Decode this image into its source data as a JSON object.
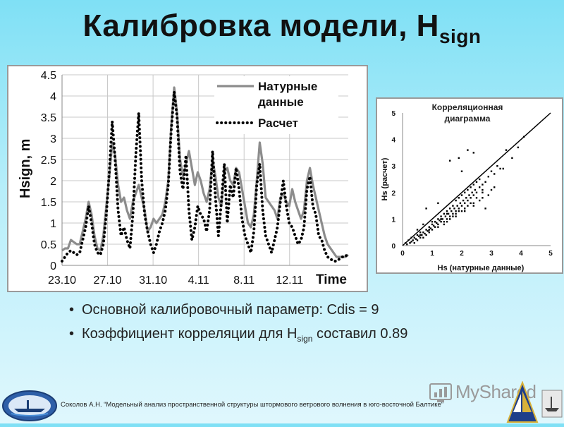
{
  "title": {
    "main": "Калибровка модели, H",
    "sub": "sign"
  },
  "bullets": [
    {
      "text": "Основной калибровочный параметр: Cdis = 9"
    },
    {
      "pre": "Коэффициент корреляции для H",
      "sub": "sign",
      "post": " составил 0.89"
    }
  ],
  "footer": "Соколов А.Н. “Модельный анализ пространственной структуры штормового ветрового волнения в юго-восточной Балтике”",
  "watermark": "MyShared",
  "colors": {
    "observed": "#8c8c8c",
    "model": "#000000",
    "grid": "#c8c8c8"
  },
  "icons": {
    "logo_left": "institute-emblem-icon",
    "logo_right": "ship-emblem-icon",
    "watermark": "myshared-logo-icon"
  },
  "chart_data": [
    {
      "type": "line",
      "ylabel": "Hsign, m",
      "xlabel": "Time",
      "ylim": [
        0,
        4.5
      ],
      "yticks": [
        "0",
        "0.5",
        "1",
        "1.5",
        "2",
        "2.5",
        "3",
        "3.5",
        "4",
        "4.5"
      ],
      "xticks": [
        "23.10",
        "27.10",
        "31.10",
        "4.11",
        "8.11",
        "12.11"
      ],
      "grid": true,
      "legend_position": "top-right",
      "series": [
        {
          "name": "Натурные данные",
          "line1": "Натурные",
          "line2": "данные",
          "style": "solid",
          "values": [
            0.35,
            0.4,
            0.4,
            0.6,
            0.55,
            0.5,
            0.5,
            0.8,
            1.1,
            1.5,
            1.2,
            0.7,
            0.4,
            0.35,
            0.7,
            1.4,
            2.1,
            2.9,
            2.6,
            1.9,
            1.5,
            1.6,
            1.3,
            1.1,
            1.5,
            1.7,
            1.9,
            1.6,
            1.3,
            0.8,
            0.9,
            1.1,
            1.0,
            1.1,
            1.2,
            1.5,
            2.0,
            3.3,
            4.2,
            3.6,
            2.5,
            2.1,
            2.4,
            2.7,
            2.3,
            1.9,
            2.2,
            2.0,
            1.7,
            1.5,
            1.8,
            2.5,
            2.1,
            1.6,
            1.4,
            2.2,
            2.3,
            2.0,
            1.9,
            2.3,
            2.2,
            1.8,
            1.4,
            1.0,
            0.9,
            1.2,
            2.0,
            2.9,
            2.4,
            1.6,
            1.5,
            1.4,
            1.3,
            1.1,
            1.6,
            1.7,
            1.5,
            1.4,
            1.8,
            1.5,
            1.3,
            1.1,
            1.3,
            2.0,
            2.3,
            1.9,
            1.6,
            1.3,
            1.0,
            0.7,
            0.5,
            0.4,
            0.3,
            0.2,
            0.2,
            0.2,
            0.2,
            0.25
          ]
        },
        {
          "name": "Расчет",
          "style": "dotted",
          "values": [
            0.1,
            0.2,
            0.3,
            0.35,
            0.3,
            0.25,
            0.3,
            0.6,
            0.9,
            1.4,
            1.0,
            0.5,
            0.3,
            0.25,
            0.5,
            1.2,
            2.2,
            3.4,
            2.5,
            1.3,
            0.7,
            0.9,
            0.6,
            0.4,
            1.2,
            2.6,
            3.6,
            2.0,
            1.2,
            0.8,
            0.5,
            0.3,
            0.5,
            0.8,
            1.0,
            1.3,
            1.9,
            3.2,
            4.1,
            3.5,
            2.2,
            1.8,
            2.6,
            1.3,
            0.6,
            0.9,
            1.4,
            1.2,
            1.1,
            0.8,
            1.3,
            2.7,
            1.6,
            0.7,
            1.5,
            2.4,
            1.0,
            1.9,
            1.6,
            2.3,
            1.8,
            1.1,
            0.7,
            0.5,
            0.3,
            0.8,
            1.9,
            2.4,
            1.3,
            0.7,
            0.5,
            0.3,
            0.6,
            0.9,
            1.5,
            2.0,
            1.4,
            1.0,
            0.9,
            0.7,
            0.5,
            0.6,
            0.9,
            1.8,
            2.1,
            1.4,
            1.2,
            0.7,
            0.6,
            0.35,
            0.2,
            0.15,
            0.1,
            0.1,
            0.15,
            0.2,
            0.2,
            0.3
          ]
        }
      ]
    },
    {
      "type": "scatter",
      "title_line1": "Корреляционная",
      "title_line2": "диаграмма",
      "xlabel": "Hs (натурные данные)",
      "ylabel": "Hs (расчет)",
      "xlim": [
        0,
        5
      ],
      "ylim": [
        0,
        5
      ],
      "xticks": [
        "0",
        "1",
        "2",
        "3",
        "4",
        "5"
      ],
      "yticks": [
        "0",
        "1",
        "2",
        "3",
        "4",
        "5"
      ],
      "grid": false,
      "line": {
        "x": [
          0,
          5
        ],
        "y": [
          0,
          5
        ]
      },
      "x": [
        0.1,
        0.15,
        0.2,
        0.25,
        0.3,
        0.3,
        0.35,
        0.4,
        0.4,
        0.45,
        0.5,
        0.5,
        0.55,
        0.6,
        0.6,
        0.65,
        0.7,
        0.7,
        0.75,
        0.8,
        0.8,
        0.85,
        0.9,
        0.9,
        0.95,
        1.0,
        1.0,
        1.05,
        1.1,
        1.1,
        1.15,
        1.2,
        1.2,
        1.25,
        1.3,
        1.3,
        1.35,
        1.4,
        1.4,
        1.45,
        1.5,
        1.5,
        1.55,
        1.6,
        1.6,
        1.65,
        1.7,
        1.7,
        1.75,
        1.8,
        1.8,
        1.85,
        1.9,
        1.9,
        1.95,
        2.0,
        2.0,
        2.05,
        2.1,
        2.1,
        2.15,
        2.2,
        2.2,
        2.25,
        2.3,
        2.3,
        2.35,
        2.4,
        2.4,
        2.45,
        2.5,
        2.5,
        2.6,
        2.6,
        2.7,
        2.7,
        2.8,
        2.9,
        3.0,
        3.1,
        3.2,
        3.3,
        3.5,
        3.7,
        3.9,
        4.1,
        0.8,
        1.0,
        1.2,
        1.4,
        1.6,
        1.8,
        2.0,
        2.2,
        2.4,
        2.6,
        0.5,
        0.7,
        0.9,
        1.1,
        1.3,
        1.5,
        1.7,
        1.9,
        2.1,
        2.3,
        2.5,
        2.7,
        2.9,
        3.1,
        0.6,
        0.9,
        1.2,
        1.5,
        1.8,
        2.1,
        2.4,
        2.7,
        3.0,
        2.2,
        2.4,
        2.0,
        1.6,
        1.9,
        2.8,
        3.4
      ],
      "y": [
        0.1,
        0.05,
        0.2,
        0.1,
        0.15,
        0.3,
        0.2,
        0.3,
        0.1,
        0.25,
        0.4,
        0.2,
        0.35,
        0.3,
        0.5,
        0.4,
        0.5,
        0.3,
        0.45,
        0.6,
        0.4,
        0.55,
        0.7,
        0.5,
        0.65,
        0.8,
        0.6,
        0.75,
        0.9,
        0.7,
        0.85,
        1.0,
        0.8,
        0.95,
        1.1,
        0.9,
        1.0,
        1.2,
        0.9,
        1.1,
        1.3,
        1.0,
        1.2,
        1.4,
        1.1,
        1.3,
        1.5,
        1.2,
        1.4,
        1.7,
        1.3,
        1.5,
        1.8,
        1.4,
        1.6,
        1.9,
        1.5,
        1.7,
        2.0,
        1.6,
        1.8,
        2.1,
        1.7,
        1.9,
        2.2,
        1.8,
        2.0,
        2.3,
        1.9,
        2.1,
        2.4,
        2.0,
        2.2,
        2.5,
        2.3,
        2.1,
        2.4,
        2.6,
        2.8,
        2.7,
        3.0,
        2.9,
        3.6,
        3.3,
        3.7,
        4.1,
        1.4,
        0.9,
        1.6,
        0.8,
        1.0,
        1.2,
        1.3,
        1.5,
        1.6,
        1.7,
        0.6,
        0.8,
        0.6,
        0.9,
        1.0,
        1.2,
        1.1,
        1.3,
        1.4,
        1.6,
        1.8,
        2.0,
        1.9,
        2.2,
        0.4,
        0.6,
        0.7,
        0.9,
        1.1,
        1.3,
        1.5,
        1.8,
        2.1,
        3.6,
        3.5,
        2.8,
        3.2,
        3.3,
        1.4,
        2.9
      ]
    }
  ]
}
